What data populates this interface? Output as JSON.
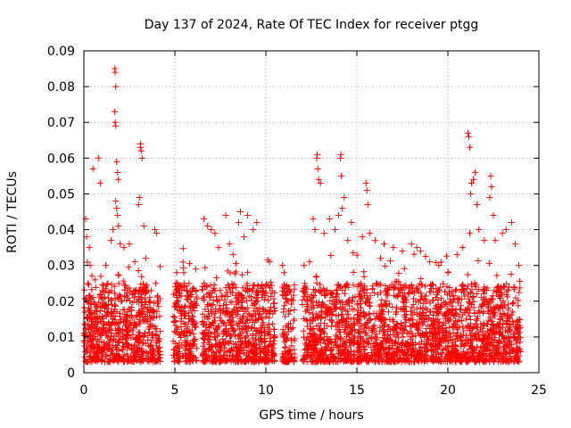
{
  "chart_data": {
    "type": "scatter",
    "title": "Day 137 of 2024, Rate Of TEC Index for receiver ptgg",
    "xlabel": "GPS time / hours",
    "ylabel": "ROTI / TECUs",
    "xlim": [
      0,
      25
    ],
    "ylim": [
      0,
      0.09
    ],
    "xticks": [
      0,
      5,
      10,
      15,
      20,
      25
    ],
    "xtick_labels": [
      "0",
      "5",
      "10",
      "15",
      "20",
      "25"
    ],
    "yticks": [
      0,
      0.01,
      0.02,
      0.03,
      0.04,
      0.05,
      0.06,
      0.07,
      0.08,
      0.09
    ],
    "ytick_labels": [
      "0",
      "0.01",
      "0.02",
      "0.03",
      "0.04",
      "0.05",
      "0.06",
      "0.07",
      "0.08",
      "0.09"
    ],
    "grid": true,
    "marker": "+",
    "color": "#ff0000",
    "series": [
      {
        "name": "ROTI",
        "coverage_hours": [
          [
            0,
            4.2
          ],
          [
            4.9,
            6.2
          ],
          [
            6.5,
            9.5
          ],
          [
            9.4,
            10.5
          ],
          [
            10.9,
            11.6
          ],
          [
            12.0,
            14.9
          ],
          [
            15.0,
            24.0
          ]
        ],
        "points": [
          [
            0.1,
            0.043
          ],
          [
            0.15,
            0.038
          ],
          [
            0.3,
            0.035
          ],
          [
            0.35,
            0.03
          ],
          [
            0.5,
            0.057
          ],
          [
            0.6,
            0.026
          ],
          [
            0.8,
            0.06
          ],
          [
            0.9,
            0.053
          ],
          [
            1.2,
            0.03
          ],
          [
            1.5,
            0.037
          ],
          [
            1.6,
            0.04
          ],
          [
            1.7,
            0.085
          ],
          [
            1.72,
            0.084
          ],
          [
            1.75,
            0.08
          ],
          [
            1.7,
            0.073
          ],
          [
            1.72,
            0.07
          ],
          [
            1.75,
            0.069
          ],
          [
            1.8,
            0.059
          ],
          [
            1.85,
            0.056
          ],
          [
            1.9,
            0.054
          ],
          [
            1.75,
            0.048
          ],
          [
            1.8,
            0.046
          ],
          [
            1.85,
            0.044
          ],
          [
            1.9,
            0.041
          ],
          [
            2.0,
            0.036
          ],
          [
            2.2,
            0.035
          ],
          [
            2.5,
            0.036
          ],
          [
            2.8,
            0.031
          ],
          [
            3.0,
            0.047
          ],
          [
            3.05,
            0.049
          ],
          [
            3.1,
            0.063
          ],
          [
            3.12,
            0.064
          ],
          [
            3.15,
            0.062
          ],
          [
            3.2,
            0.06
          ],
          [
            3.3,
            0.041
          ],
          [
            3.4,
            0.032
          ],
          [
            3.9,
            0.04
          ],
          [
            4.0,
            0.039
          ],
          [
            5.1,
            0.028
          ],
          [
            5.5,
            0.025
          ],
          [
            6.6,
            0.043
          ],
          [
            6.8,
            0.041
          ],
          [
            7.0,
            0.04
          ],
          [
            7.2,
            0.039
          ],
          [
            7.4,
            0.035
          ],
          [
            7.8,
            0.044
          ],
          [
            8.0,
            0.036
          ],
          [
            8.2,
            0.033
          ],
          [
            8.5,
            0.042
          ],
          [
            8.6,
            0.045
          ],
          [
            8.8,
            0.038
          ],
          [
            9.0,
            0.044
          ],
          [
            9.3,
            0.04
          ],
          [
            9.5,
            0.042
          ],
          [
            10.2,
            0.031
          ],
          [
            11.0,
            0.028
          ],
          [
            12.1,
            0.03
          ],
          [
            12.4,
            0.031
          ],
          [
            12.6,
            0.043
          ],
          [
            12.7,
            0.04
          ],
          [
            12.8,
            0.06
          ],
          [
            12.82,
            0.061
          ],
          [
            12.85,
            0.057
          ],
          [
            12.9,
            0.054
          ],
          [
            13.0,
            0.053
          ],
          [
            13.2,
            0.039
          ],
          [
            13.5,
            0.043
          ],
          [
            13.8,
            0.04
          ],
          [
            14.0,
            0.044
          ],
          [
            14.1,
            0.06
          ],
          [
            14.12,
            0.061
          ],
          [
            14.15,
            0.055
          ],
          [
            14.2,
            0.046
          ],
          [
            14.3,
            0.049
          ],
          [
            14.5,
            0.037
          ],
          [
            14.7,
            0.042
          ],
          [
            15.3,
            0.038
          ],
          [
            15.5,
            0.053
          ],
          [
            15.55,
            0.051
          ],
          [
            15.6,
            0.047
          ],
          [
            15.7,
            0.039
          ],
          [
            16.0,
            0.037
          ],
          [
            16.3,
            0.032
          ],
          [
            16.5,
            0.036
          ],
          [
            17.0,
            0.035
          ],
          [
            17.5,
            0.034
          ],
          [
            18.0,
            0.036
          ],
          [
            18.3,
            0.035
          ],
          [
            18.5,
            0.034
          ],
          [
            19.0,
            0.031
          ],
          [
            19.5,
            0.03
          ],
          [
            20.0,
            0.028
          ],
          [
            20.5,
            0.033
          ],
          [
            20.8,
            0.035
          ],
          [
            21.1,
            0.067
          ],
          [
            21.15,
            0.066
          ],
          [
            21.2,
            0.063
          ],
          [
            21.25,
            0.05
          ],
          [
            21.3,
            0.053
          ],
          [
            21.4,
            0.054
          ],
          [
            21.5,
            0.056
          ],
          [
            21.6,
            0.047
          ],
          [
            21.2,
            0.039
          ],
          [
            21.7,
            0.04
          ],
          [
            22.0,
            0.037
          ],
          [
            22.3,
            0.049
          ],
          [
            22.35,
            0.055
          ],
          [
            22.4,
            0.052
          ],
          [
            22.5,
            0.044
          ],
          [
            22.6,
            0.037
          ],
          [
            23.0,
            0.039
          ],
          [
            23.2,
            0.04
          ],
          [
            23.5,
            0.042
          ],
          [
            23.7,
            0.036
          ],
          [
            23.9,
            0.03
          ]
        ]
      }
    ]
  }
}
